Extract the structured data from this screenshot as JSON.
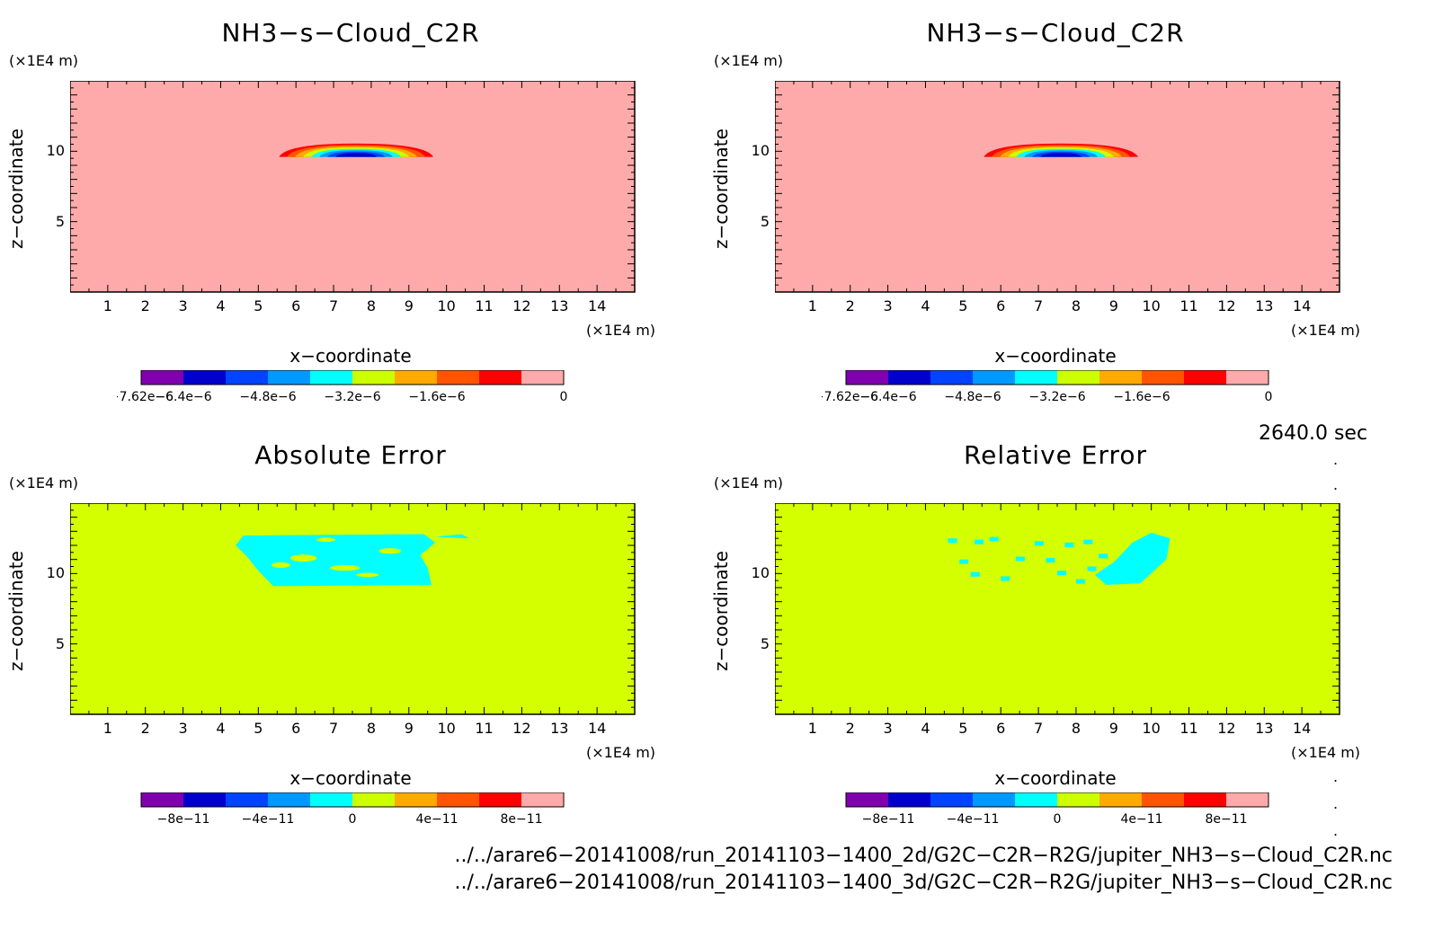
{
  "chart_data": [
    {
      "type": "heatmap",
      "title": "NH3−s−Cloud_C2R",
      "xlabel": "x−coordinate",
      "ylabel": "z−coordinate",
      "x_unit": "(×1E4 m)",
      "y_unit": "(×1E4 m)",
      "xlim": [
        0,
        15
      ],
      "ylim": [
        0,
        15
      ],
      "xticks": [
        "1",
        "2",
        "3",
        "4",
        "5",
        "6",
        "7",
        "8",
        "9",
        "10",
        "11",
        "12",
        "13",
        "14"
      ],
      "yticks": [
        "5",
        "10"
      ],
      "background_color": "#ffaaaa",
      "feature": "cloud_lens",
      "colorbar_labels": [
        "−7.62e−6",
        "−6.4e−6",
        "−4.8e−6",
        "−3.2e−6",
        "−1.6e−6",
        "0"
      ],
      "colorbar_colors": [
        "#8000b0",
        "#0000cc",
        "#0044ff",
        "#0099ff",
        "#00ffff",
        "#ccff00",
        "#ffaa00",
        "#ff5500",
        "#ff0000",
        "#ffaaaa"
      ]
    },
    {
      "type": "heatmap",
      "title": "NH3−s−Cloud_C2R",
      "xlabel": "x−coordinate",
      "ylabel": "z−coordinate",
      "x_unit": "(×1E4 m)",
      "y_unit": "(×1E4 m)",
      "xlim": [
        0,
        15
      ],
      "ylim": [
        0,
        15
      ],
      "xticks": [
        "1",
        "2",
        "3",
        "4",
        "5",
        "6",
        "7",
        "8",
        "9",
        "10",
        "11",
        "12",
        "13",
        "14"
      ],
      "yticks": [
        "5",
        "10"
      ],
      "background_color": "#ffaaaa",
      "feature": "cloud_lens",
      "colorbar_labels": [
        "−7.62e−6",
        "−6.4e−6",
        "−4.8e−6",
        "−3.2e−6",
        "−1.6e−6",
        "0"
      ],
      "colorbar_colors": [
        "#8000b0",
        "#0000cc",
        "#0044ff",
        "#0099ff",
        "#00ffff",
        "#ccff00",
        "#ffaa00",
        "#ff5500",
        "#ff0000",
        "#ffaaaa"
      ]
    },
    {
      "type": "heatmap",
      "title": "Absolute Error",
      "xlabel": "x−coordinate",
      "ylabel": "z−coordinate",
      "x_unit": "(×1E4 m)",
      "y_unit": "(×1E4 m)",
      "xlim": [
        0,
        15
      ],
      "ylim": [
        0,
        15
      ],
      "xticks": [
        "1",
        "2",
        "3",
        "4",
        "5",
        "6",
        "7",
        "8",
        "9",
        "10",
        "11",
        "12",
        "13",
        "14"
      ],
      "yticks": [
        "5",
        "10"
      ],
      "background_color": "#d4ff00",
      "feature": "abs_error",
      "colorbar_labels": [
        "−8e−11",
        "−4e−11",
        "0",
        "4e−11",
        "8e−11"
      ],
      "colorbar_colors": [
        "#8000b0",
        "#0000cc",
        "#0044ff",
        "#0099ff",
        "#00ffff",
        "#ccff00",
        "#ffaa00",
        "#ff5500",
        "#ff0000",
        "#ffaaaa"
      ]
    },
    {
      "type": "heatmap",
      "title": "Relative Error",
      "xlabel": "x−coordinate",
      "ylabel": "z−coordinate",
      "x_unit": "(×1E4 m)",
      "y_unit": "(×1E4 m)",
      "xlim": [
        0,
        15
      ],
      "ylim": [
        0,
        15
      ],
      "xticks": [
        "1",
        "2",
        "3",
        "4",
        "5",
        "6",
        "7",
        "8",
        "9",
        "10",
        "11",
        "12",
        "13",
        "14"
      ],
      "yticks": [
        "5",
        "10"
      ],
      "background_color": "#d4ff00",
      "feature": "rel_error",
      "colorbar_labels": [
        "−8e−11",
        "−4e−11",
        "0",
        "4e−11",
        "8e−11"
      ],
      "colorbar_colors": [
        "#8000b0",
        "#0000cc",
        "#0044ff",
        "#0099ff",
        "#00ffff",
        "#ccff00",
        "#ffaa00",
        "#ff5500",
        "#ff0000",
        "#ffaaaa"
      ]
    }
  ],
  "timestamp": "2640.0 sec",
  "files": [
    "../../arare6−20141008/run_20141103−1400_2d/G2C−C2R−R2G/jupiter_NH3−s−Cloud_C2R.nc",
    "../../arare6−20141008/run_20141103−1400_3d/G2C−C2R−R2G/jupiter_NH3−s−Cloud_C2R.nc"
  ]
}
